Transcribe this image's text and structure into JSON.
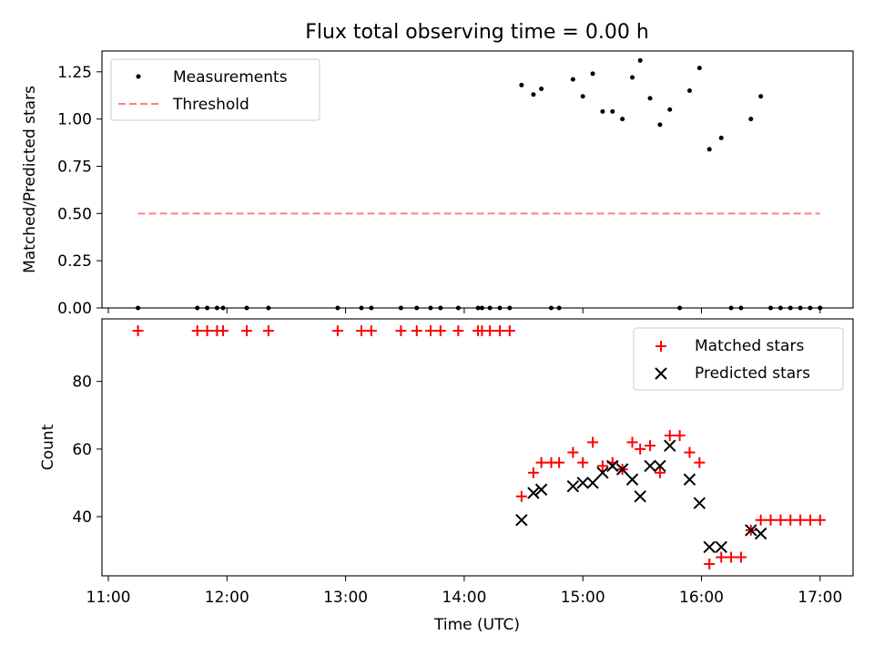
{
  "chart_data": [
    {
      "type": "scatter",
      "title": "Flux total observing time = 0.00 h",
      "xlabel": "",
      "ylabel": "Matched/Predicted stars",
      "ylim": [
        0,
        1.36
      ],
      "yticks": [
        0.0,
        0.25,
        0.5,
        0.75,
        1.0,
        1.25
      ],
      "ytick_labels": [
        "0.00",
        "0.25",
        "0.50",
        "0.75",
        "1.00",
        "1.25"
      ],
      "xticks": [
        "11:00",
        "12:00",
        "13:00",
        "14:00",
        "15:00",
        "16:00",
        "17:00"
      ],
      "xtick_labels_visible": false,
      "grid": false,
      "legend_position": "top-left",
      "series": [
        {
          "name": "Measurements",
          "marker": "dot",
          "color": "#000000",
          "points": [
            [
              "11:15",
              0.0
            ],
            [
              "11:45",
              0.0
            ],
            [
              "11:50",
              0.0
            ],
            [
              "11:55",
              0.0
            ],
            [
              "11:58",
              0.0
            ],
            [
              "12:10",
              0.0
            ],
            [
              "12:21",
              0.0
            ],
            [
              "12:56",
              0.0
            ],
            [
              "13:08",
              0.0
            ],
            [
              "13:13",
              0.0
            ],
            [
              "13:28",
              0.0
            ],
            [
              "13:36",
              0.0
            ],
            [
              "13:43",
              0.0
            ],
            [
              "13:48",
              0.0
            ],
            [
              "13:57",
              0.0
            ],
            [
              "14:07",
              0.0
            ],
            [
              "14:09",
              0.0
            ],
            [
              "14:13",
              0.0
            ],
            [
              "14:18",
              0.0
            ],
            [
              "14:23",
              0.0
            ],
            [
              "14:29",
              1.18
            ],
            [
              "14:35",
              1.13
            ],
            [
              "14:39",
              1.16
            ],
            [
              "14:44",
              0.0
            ],
            [
              "14:48",
              0.0
            ],
            [
              "14:55",
              1.21
            ],
            [
              "15:00",
              1.12
            ],
            [
              "15:05",
              1.24
            ],
            [
              "15:10",
              1.04
            ],
            [
              "15:15",
              1.04
            ],
            [
              "15:20",
              1.0
            ],
            [
              "15:25",
              1.22
            ],
            [
              "15:29",
              1.31
            ],
            [
              "15:34",
              1.11
            ],
            [
              "15:39",
              0.97
            ],
            [
              "15:44",
              1.05
            ],
            [
              "15:49",
              0.0
            ],
            [
              "15:54",
              1.15
            ],
            [
              "15:59",
              1.27
            ],
            [
              "16:04",
              0.84
            ],
            [
              "16:10",
              0.9
            ],
            [
              "16:15",
              0.0
            ],
            [
              "16:20",
              0.0
            ],
            [
              "16:25",
              1.0
            ],
            [
              "16:30",
              1.12
            ],
            [
              "16:35",
              0.0
            ],
            [
              "16:40",
              0.0
            ],
            [
              "16:45",
              0.0
            ],
            [
              "16:50",
              0.0
            ],
            [
              "16:55",
              0.0
            ],
            [
              "17:00",
              0.0
            ]
          ]
        },
        {
          "name": "Threshold",
          "marker": "dashed-line",
          "color": "#ff7f7f",
          "points": [
            [
              "11:15",
              0.5
            ],
            [
              "17:00",
              0.5
            ]
          ]
        }
      ]
    },
    {
      "type": "scatter",
      "title": "",
      "xlabel": "Time (UTC)",
      "ylabel": "Count",
      "ylim": [
        22.5,
        98.5
      ],
      "yticks": [
        40,
        60,
        80
      ],
      "ytick_labels": [
        "40",
        "60",
        "80"
      ],
      "xticks": [
        "11:00",
        "12:00",
        "13:00",
        "14:00",
        "15:00",
        "16:00",
        "17:00"
      ],
      "grid": false,
      "legend_position": "top-right",
      "series": [
        {
          "name": "Matched stars",
          "marker": "plus",
          "color": "#ff0000",
          "points": [
            [
              "11:15",
              95
            ],
            [
              "11:45",
              95
            ],
            [
              "11:50",
              95
            ],
            [
              "11:55",
              95
            ],
            [
              "11:58",
              95
            ],
            [
              "12:10",
              95
            ],
            [
              "12:21",
              95
            ],
            [
              "12:56",
              95
            ],
            [
              "13:08",
              95
            ],
            [
              "13:13",
              95
            ],
            [
              "13:28",
              95
            ],
            [
              "13:36",
              95
            ],
            [
              "13:43",
              95
            ],
            [
              "13:48",
              95
            ],
            [
              "13:57",
              95
            ],
            [
              "14:07",
              95
            ],
            [
              "14:09",
              95
            ],
            [
              "14:13",
              95
            ],
            [
              "14:18",
              95
            ],
            [
              "14:23",
              95
            ],
            [
              "14:29",
              46
            ],
            [
              "14:35",
              53
            ],
            [
              "14:39",
              56
            ],
            [
              "14:44",
              56
            ],
            [
              "14:48",
              56
            ],
            [
              "14:55",
              59
            ],
            [
              "15:00",
              56
            ],
            [
              "15:05",
              62
            ],
            [
              "15:10",
              55
            ],
            [
              "15:15",
              56
            ],
            [
              "15:20",
              54
            ],
            [
              "15:25",
              62
            ],
            [
              "15:29",
              60
            ],
            [
              "15:34",
              61
            ],
            [
              "15:39",
              53
            ],
            [
              "15:44",
              64
            ],
            [
              "15:49",
              64
            ],
            [
              "15:54",
              59
            ],
            [
              "15:59",
              56
            ],
            [
              "16:04",
              26
            ],
            [
              "16:10",
              28
            ],
            [
              "16:15",
              28
            ],
            [
              "16:20",
              28
            ],
            [
              "16:25",
              36
            ],
            [
              "16:30",
              39
            ],
            [
              "16:35",
              39
            ],
            [
              "16:40",
              39
            ],
            [
              "16:45",
              39
            ],
            [
              "16:50",
              39
            ],
            [
              "16:55",
              39
            ],
            [
              "17:00",
              39
            ]
          ]
        },
        {
          "name": "Predicted stars",
          "marker": "x",
          "color": "#000000",
          "points": [
            [
              "14:29",
              39
            ],
            [
              "14:35",
              47
            ],
            [
              "14:39",
              48
            ],
            [
              "14:55",
              49
            ],
            [
              "15:00",
              50
            ],
            [
              "15:05",
              50
            ],
            [
              "15:10",
              53
            ],
            [
              "15:15",
              55
            ],
            [
              "15:20",
              54
            ],
            [
              "15:25",
              51
            ],
            [
              "15:29",
              46
            ],
            [
              "15:34",
              55
            ],
            [
              "15:39",
              55
            ],
            [
              "15:44",
              61
            ],
            [
              "15:54",
              51
            ],
            [
              "15:59",
              44
            ],
            [
              "16:04",
              31
            ],
            [
              "16:10",
              31
            ],
            [
              "16:25",
              36
            ],
            [
              "16:30",
              35
            ]
          ]
        }
      ]
    }
  ]
}
